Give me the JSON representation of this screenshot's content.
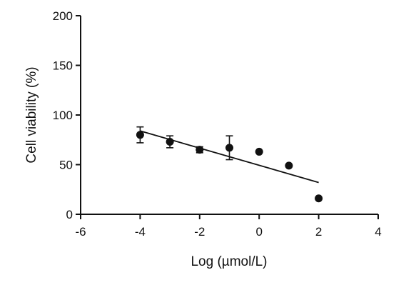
{
  "chart_data": {
    "type": "scatter",
    "title": "",
    "xlabel": "Log (µmol/L)",
    "ylabel": "Cell viability (%)",
    "xlim": [
      -6,
      4
    ],
    "ylim": [
      0,
      200
    ],
    "x_ticks": [
      -6,
      -4,
      -2,
      0,
      2,
      4
    ],
    "y_ticks": [
      0,
      50,
      100,
      150,
      200
    ],
    "x_tick_labels": [
      "-6",
      "-4",
      "-2",
      "0",
      "2",
      "4"
    ],
    "y_tick_labels": [
      "0",
      "50",
      "100",
      "150",
      "200"
    ],
    "grid": false,
    "legend": "none",
    "series": [
      {
        "x": [
          -4,
          -3,
          -2,
          -1,
          0,
          1,
          2
        ],
        "y": [
          80,
          73,
          65,
          67,
          63,
          49,
          16
        ],
        "error": [
          8,
          6,
          3,
          12,
          0,
          0,
          0
        ]
      }
    ],
    "fit_line": {
      "x": [
        -4,
        2
      ],
      "y": [
        84,
        32
      ]
    },
    "colors": {
      "marker": "#111111",
      "axis": "#111111"
    }
  }
}
